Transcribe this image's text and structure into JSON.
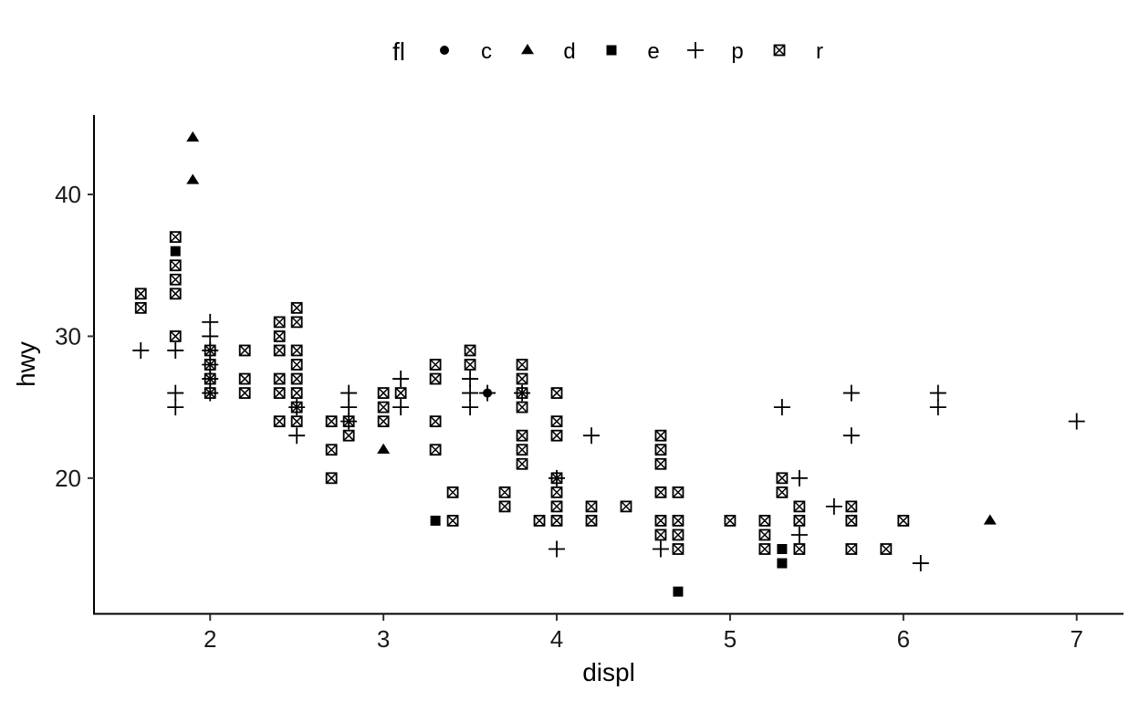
{
  "chart_data": {
    "type": "scatter",
    "xlabel": "displ",
    "ylabel": "hwy",
    "xlim": [
      1.33,
      7.27
    ],
    "ylim": [
      10.4,
      45.6
    ],
    "xticks": [
      2,
      3,
      4,
      5,
      6,
      7
    ],
    "yticks": [
      20,
      30,
      40
    ],
    "grid": false,
    "legend": {
      "title": "fl",
      "placement": "top",
      "entries": [
        {
          "key": "c",
          "label": "c",
          "shape": "circle"
        },
        {
          "key": "d",
          "label": "d",
          "shape": "triangle"
        },
        {
          "key": "e",
          "label": "e",
          "shape": "square"
        },
        {
          "key": "p",
          "label": "p",
          "shape": "plus"
        },
        {
          "key": "r",
          "label": "r",
          "shape": "boxed-x"
        }
      ]
    },
    "series": [
      {
        "key": "c",
        "points": [
          [
            3.6,
            26
          ]
        ]
      },
      {
        "key": "d",
        "points": [
          [
            1.9,
            44
          ],
          [
            1.9,
            41
          ],
          [
            3.0,
            22
          ],
          [
            6.5,
            17
          ]
        ]
      },
      {
        "key": "e",
        "points": [
          [
            1.8,
            36
          ],
          [
            3.3,
            17
          ],
          [
            4.7,
            12
          ],
          [
            5.3,
            15
          ],
          [
            5.3,
            14
          ]
        ]
      },
      {
        "key": "p",
        "points": [
          [
            1.6,
            29
          ],
          [
            1.8,
            29
          ],
          [
            1.8,
            26
          ],
          [
            1.8,
            25
          ],
          [
            2.0,
            31
          ],
          [
            2.0,
            30
          ],
          [
            2.0,
            29
          ],
          [
            2.0,
            28
          ],
          [
            2.0,
            27
          ],
          [
            2.0,
            26
          ],
          [
            2.5,
            25
          ],
          [
            2.5,
            23
          ],
          [
            2.8,
            26
          ],
          [
            2.8,
            25
          ],
          [
            2.8,
            24
          ],
          [
            3.1,
            27
          ],
          [
            3.1,
            25
          ],
          [
            3.5,
            27
          ],
          [
            3.5,
            26
          ],
          [
            3.5,
            25
          ],
          [
            3.6,
            26
          ],
          [
            3.8,
            26
          ],
          [
            4.0,
            20
          ],
          [
            4.0,
            15
          ],
          [
            4.2,
            23
          ],
          [
            4.6,
            15
          ],
          [
            5.3,
            25
          ],
          [
            5.4,
            20
          ],
          [
            5.4,
            16
          ],
          [
            5.6,
            18
          ],
          [
            5.7,
            26
          ],
          [
            5.7,
            23
          ],
          [
            6.1,
            14
          ],
          [
            6.2,
            26
          ],
          [
            6.2,
            25
          ],
          [
            7.0,
            24
          ]
        ]
      },
      {
        "key": "r",
        "points": [
          [
            1.6,
            33
          ],
          [
            1.6,
            32
          ],
          [
            1.8,
            37
          ],
          [
            1.8,
            35
          ],
          [
            1.8,
            34
          ],
          [
            1.8,
            33
          ],
          [
            1.8,
            30
          ],
          [
            2.0,
            29
          ],
          [
            2.0,
            28
          ],
          [
            2.0,
            27
          ],
          [
            2.0,
            26
          ],
          [
            2.2,
            29
          ],
          [
            2.2,
            27
          ],
          [
            2.2,
            26
          ],
          [
            2.4,
            31
          ],
          [
            2.4,
            30
          ],
          [
            2.4,
            29
          ],
          [
            2.4,
            27
          ],
          [
            2.4,
            26
          ],
          [
            2.4,
            24
          ],
          [
            2.5,
            32
          ],
          [
            2.5,
            31
          ],
          [
            2.5,
            29
          ],
          [
            2.5,
            28
          ],
          [
            2.5,
            27
          ],
          [
            2.5,
            26
          ],
          [
            2.5,
            25
          ],
          [
            2.5,
            24
          ],
          [
            2.7,
            24
          ],
          [
            2.7,
            22
          ],
          [
            2.7,
            20
          ],
          [
            2.8,
            24
          ],
          [
            2.8,
            23
          ],
          [
            3.0,
            26
          ],
          [
            3.0,
            25
          ],
          [
            3.0,
            24
          ],
          [
            3.1,
            26
          ],
          [
            3.3,
            28
          ],
          [
            3.3,
            27
          ],
          [
            3.3,
            24
          ],
          [
            3.3,
            22
          ],
          [
            3.4,
            19
          ],
          [
            3.4,
            17
          ],
          [
            3.5,
            29
          ],
          [
            3.5,
            28
          ],
          [
            3.7,
            19
          ],
          [
            3.7,
            18
          ],
          [
            3.8,
            28
          ],
          [
            3.8,
            27
          ],
          [
            3.8,
            26
          ],
          [
            3.8,
            25
          ],
          [
            3.8,
            23
          ],
          [
            3.8,
            22
          ],
          [
            3.8,
            21
          ],
          [
            3.9,
            17
          ],
          [
            4.0,
            26
          ],
          [
            4.0,
            24
          ],
          [
            4.0,
            23
          ],
          [
            4.0,
            20
          ],
          [
            4.0,
            19
          ],
          [
            4.0,
            18
          ],
          [
            4.0,
            17
          ],
          [
            4.2,
            18
          ],
          [
            4.2,
            17
          ],
          [
            4.4,
            18
          ],
          [
            4.6,
            23
          ],
          [
            4.6,
            22
          ],
          [
            4.6,
            21
          ],
          [
            4.6,
            19
          ],
          [
            4.6,
            17
          ],
          [
            4.6,
            16
          ],
          [
            4.7,
            19
          ],
          [
            4.7,
            17
          ],
          [
            4.7,
            16
          ],
          [
            4.7,
            15
          ],
          [
            5.0,
            17
          ],
          [
            5.2,
            17
          ],
          [
            5.2,
            16
          ],
          [
            5.2,
            15
          ],
          [
            5.3,
            20
          ],
          [
            5.3,
            19
          ],
          [
            5.4,
            18
          ],
          [
            5.4,
            17
          ],
          [
            5.4,
            15
          ],
          [
            5.7,
            18
          ],
          [
            5.7,
            17
          ],
          [
            5.7,
            15
          ],
          [
            5.9,
            15
          ],
          [
            6.0,
            17
          ]
        ]
      }
    ]
  }
}
